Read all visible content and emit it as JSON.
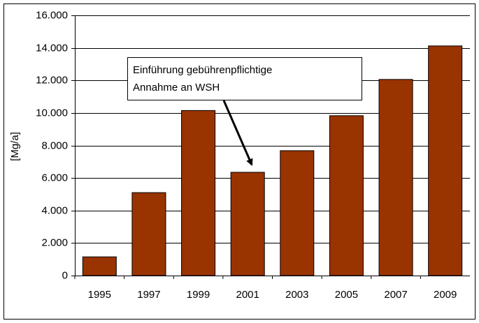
{
  "chart_data": {
    "type": "bar",
    "y_axis_label": "[Mg/a]",
    "categories": [
      "1995",
      "1997",
      "1999",
      "2001",
      "2003",
      "2005",
      "2007",
      "2009"
    ],
    "values": [
      1150,
      5100,
      10150,
      6350,
      7680,
      9830,
      12060,
      14120
    ],
    "color": "#993300",
    "ylim": [
      0,
      16000
    ],
    "yticks": [
      0,
      {
        "value": 2000,
        "label": "2.000"
      },
      {
        "value": 4000,
        "label": "4.000"
      },
      {
        "value": 6000,
        "label": "6.000"
      },
      {
        "value": 8000,
        "label": "8.000"
      },
      {
        "value": 10000,
        "label": "10.000"
      },
      {
        "value": 12000,
        "label": "12.000"
      },
      {
        "value": 14000,
        "label": "14.000"
      },
      {
        "value": 16000,
        "label": "16.000"
      }
    ],
    "grid": true,
    "annotation": [
      "Einführung gebührenpflichtige",
      "Annahme an WSH"
    ]
  }
}
